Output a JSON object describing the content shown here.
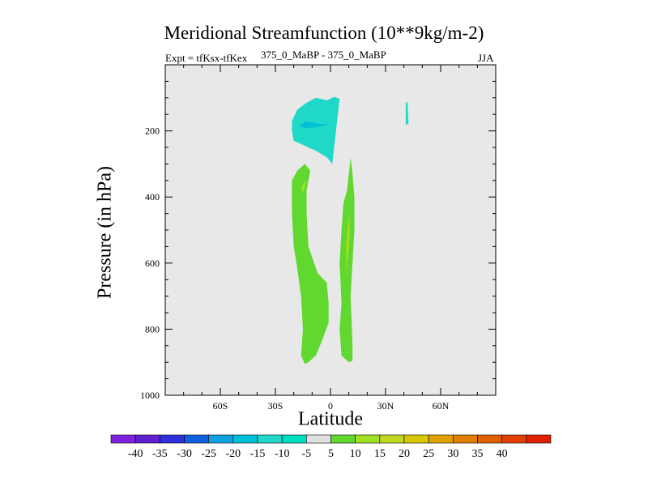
{
  "chart_data": {
    "type": "filled-contour",
    "title": "Meridional Streamfunction (10**9kg/m-2)",
    "subtitle_left": "Expt = tfKsx-tfKex",
    "subtitle_center": "375_0_MaBP - 375_0_MaBP",
    "subtitle_right": "JJA",
    "xlabel": "Latitude",
    "ylabel": "Pressure (in hPa)",
    "xlim": [
      -90,
      90
    ],
    "ylim": [
      1000,
      0
    ],
    "x_ticks": [
      {
        "value": -60,
        "label": "60S"
      },
      {
        "value": -30,
        "label": "30S"
      },
      {
        "value": 0,
        "label": "0"
      },
      {
        "value": 30,
        "label": "30N"
      },
      {
        "value": 60,
        "label": "60N"
      }
    ],
    "y_ticks": [
      {
        "value": 200,
        "label": "200"
      },
      {
        "value": 400,
        "label": "400"
      },
      {
        "value": 600,
        "label": "600"
      },
      {
        "value": 800,
        "label": "800"
      },
      {
        "value": 1000,
        "label": "1000"
      }
    ],
    "background_color": "#e8e8e8",
    "regions": [
      {
        "name": "southern-negative-cell",
        "level": -10,
        "color": "#20d8c8",
        "points": [
          [
            -21,
            170
          ],
          [
            -18,
            135
          ],
          [
            -13,
            115
          ],
          [
            -8,
            100
          ],
          [
            -2,
            107
          ],
          [
            2,
            97
          ],
          [
            5,
            103
          ],
          [
            4,
            150
          ],
          [
            3,
            200
          ],
          [
            2,
            250
          ],
          [
            1,
            300
          ],
          [
            -2,
            280
          ],
          [
            -8,
            260
          ],
          [
            -16,
            240
          ],
          [
            -20,
            230
          ],
          [
            -21,
            200
          ]
        ]
      },
      {
        "name": "southern-negative-core",
        "level": -15,
        "color": "#00c0d8",
        "points": [
          [
            -17,
            185
          ],
          [
            -14,
            172
          ],
          [
            -10,
            175
          ],
          [
            -5,
            180
          ],
          [
            -1,
            178
          ],
          [
            -5,
            186
          ],
          [
            -10,
            190
          ],
          [
            -14,
            192
          ]
        ]
      },
      {
        "name": "northern-negative-sliver",
        "level": -10,
        "color": "#20d8c8",
        "points": [
          [
            41,
            115
          ],
          [
            42,
            113
          ],
          [
            42.5,
            180
          ],
          [
            41,
            180
          ]
        ]
      },
      {
        "name": "southern-positive-cell",
        "level": 5,
        "color": "#60d830",
        "points": [
          [
            -21,
            350
          ],
          [
            -18,
            320
          ],
          [
            -14,
            300
          ],
          [
            -11,
            320
          ],
          [
            -13,
            380
          ],
          [
            -13,
            450
          ],
          [
            -12,
            550
          ],
          [
            -7,
            630
          ],
          [
            -2,
            660
          ],
          [
            -1,
            720
          ],
          [
            -1,
            780
          ],
          [
            -5,
            840
          ],
          [
            -8,
            880
          ],
          [
            -12,
            900
          ],
          [
            -14,
            905
          ],
          [
            -16,
            880
          ],
          [
            -15,
            800
          ],
          [
            -16,
            700
          ],
          [
            -18,
            620
          ],
          [
            -20,
            550
          ],
          [
            -21,
            450
          ]
        ]
      },
      {
        "name": "southern-positive-core",
        "level": 10,
        "color": "#a0e020",
        "points": [
          [
            -16,
            380
          ],
          [
            -15,
            360
          ],
          [
            -13,
            350
          ],
          [
            -14,
            370
          ],
          [
            -15,
            385
          ]
        ]
      },
      {
        "name": "northern-positive-cell",
        "level": 5,
        "color": "#60d830",
        "points": [
          [
            9,
            380
          ],
          [
            10,
            330
          ],
          [
            11,
            280
          ],
          [
            12,
            330
          ],
          [
            13,
            400
          ],
          [
            13,
            500
          ],
          [
            12,
            600
          ],
          [
            11,
            700
          ],
          [
            12,
            850
          ],
          [
            12,
            895
          ],
          [
            10,
            900
          ],
          [
            6,
            880
          ],
          [
            5,
            800
          ],
          [
            6,
            720
          ],
          [
            5,
            600
          ],
          [
            6,
            500
          ],
          [
            7,
            420
          ]
        ]
      },
      {
        "name": "northern-positive-core",
        "level": 10,
        "color": "#a0e020",
        "points": [
          [
            8.5,
            550
          ],
          [
            9.5,
            490
          ],
          [
            10,
            450
          ],
          [
            10.5,
            500
          ],
          [
            10,
            560
          ],
          [
            9,
            600
          ],
          [
            8.5,
            650
          ]
        ]
      }
    ],
    "colorbar": {
      "colors": [
        "#8020e0",
        "#6020d0",
        "#3030d8",
        "#1060e0",
        "#10a0e0",
        "#00c0d8",
        "#20d8c8",
        "#00e0c0",
        "#e0e0e0",
        "#60d830",
        "#a0e020",
        "#c0d820",
        "#d8c800",
        "#e0a000",
        "#e08000",
        "#e06000",
        "#e04000",
        "#e02000"
      ],
      "labels": [
        "-40",
        "-35",
        "-30",
        "-25",
        "-20",
        "-15",
        "-10",
        "-5",
        "5",
        "10",
        "15",
        "20",
        "25",
        "30",
        "35",
        "40"
      ]
    }
  }
}
